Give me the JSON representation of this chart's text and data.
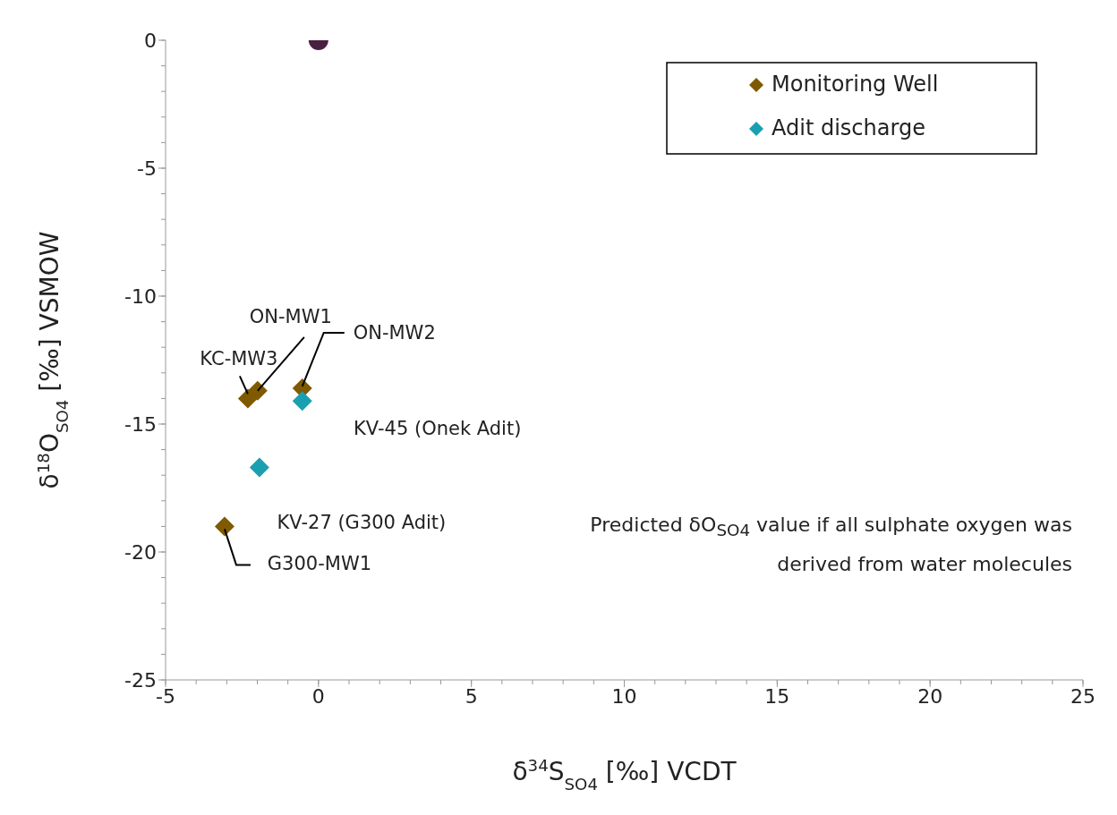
{
  "chart_data": {
    "type": "scatter",
    "xlabel": "δ$^{34}$S$_{SO4}$ [‰] VCDT",
    "ylabel": "δ$^{18}$O$_{SO4}$ [‰] VSMOW",
    "xlim": [
      -5,
      25
    ],
    "xticks": [
      -5,
      0,
      5,
      10,
      15,
      20,
      25
    ],
    "ylim": [
      -25,
      0
    ],
    "yticks": [
      -25,
      -20,
      -15,
      -10,
      -5,
      0
    ],
    "grid": false,
    "legend": "top right",
    "series": [
      {
        "name": "Monitoring Well",
        "color": "#7f5a00",
        "marker": "diamond",
        "x": [
          -2.31,
          -1.99,
          -0.53,
          -3.07
        ],
        "values": [
          -14.0,
          -13.7,
          -13.6,
          -19.0
        ]
      },
      {
        "name": "Adit discharge",
        "color": "#1a9fb0",
        "marker": "diamond",
        "x": [
          -0.53,
          -1.93
        ],
        "values": [
          -14.1,
          -16.7
        ]
      },
      {
        "color": "#4a2040",
        "marker": "circle",
        "x": [
          0
        ],
        "values": [
          0
        ]
      }
    ],
    "annotations": [
      {
        "text": "KC-MW3",
        "x": -2.31,
        "y": -14.0
      },
      {
        "text": "ON-MW1",
        "x": -1.99,
        "y": -13.7
      },
      {
        "text": "ON-MW2",
        "x": -0.53,
        "y": -13.6
      },
      {
        "text": "KV-45 (Onek Adit)",
        "x": -0.53,
        "y": -14.1
      },
      {
        "text": "KV-27 (G300 Adit)",
        "x": -1.93,
        "y": -16.7
      },
      {
        "text": "G300-MW1",
        "x": -3.07,
        "y": -19.0
      },
      "Predicted δO$_{SO4}$ value if all sulphate oxygen was derived from water molecules"
    ]
  }
}
